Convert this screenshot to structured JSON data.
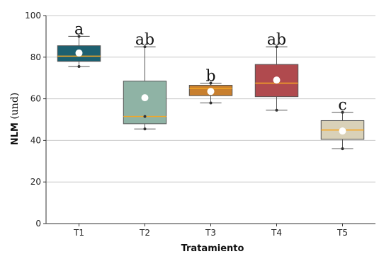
{
  "chart_data": {
    "type": "box",
    "xlabel": "Tratamiento",
    "ylabel_bold": "NLM",
    "ylabel_unit": " (und)",
    "ylim": [
      0,
      100
    ],
    "yticks": [
      0,
      20,
      40,
      60,
      80,
      100
    ],
    "grid": "horizontal",
    "categories": [
      "T1",
      "T2",
      "T3",
      "T4",
      "T5"
    ],
    "boxes": [
      {
        "category": "T1",
        "whisker_low": 75.5,
        "q1": 78,
        "median": 80.5,
        "q3": 85.5,
        "whisker_high": 90,
        "mean": 82,
        "points": [
          75.5,
          90
        ],
        "color": "#1d6070",
        "letter": "a"
      },
      {
        "category": "T2",
        "whisker_low": 45.5,
        "q1": 48,
        "median": 51.5,
        "q3": 68.5,
        "whisker_high": 85,
        "mean": 60.5,
        "points": [
          45.5,
          51.5,
          85
        ],
        "color": "#8fb3a5",
        "letter": "ab"
      },
      {
        "category": "T3",
        "whisker_low": 58,
        "q1": 61.5,
        "median": 65,
        "q3": 66.5,
        "whisker_high": 67.5,
        "mean": 63.5,
        "points": [
          58,
          67.5
        ],
        "color": "#c87f2e",
        "letter": "b"
      },
      {
        "category": "T4",
        "whisker_low": 54.5,
        "q1": 61,
        "median": 67.5,
        "q3": 76.5,
        "whisker_high": 85,
        "mean": 69,
        "points": [
          54.5,
          85
        ],
        "color": "#b04a4e",
        "letter": "ab"
      },
      {
        "category": "T5",
        "whisker_low": 36,
        "q1": 40.5,
        "median": 45,
        "q3": 49.5,
        "whisker_high": 53.5,
        "mean": 44.5,
        "points": [
          36,
          53.5
        ],
        "color": "#d9d1b8",
        "letter": "c"
      }
    ],
    "median_color": "#f5a623",
    "mean_marker_color": "#ffffff"
  }
}
